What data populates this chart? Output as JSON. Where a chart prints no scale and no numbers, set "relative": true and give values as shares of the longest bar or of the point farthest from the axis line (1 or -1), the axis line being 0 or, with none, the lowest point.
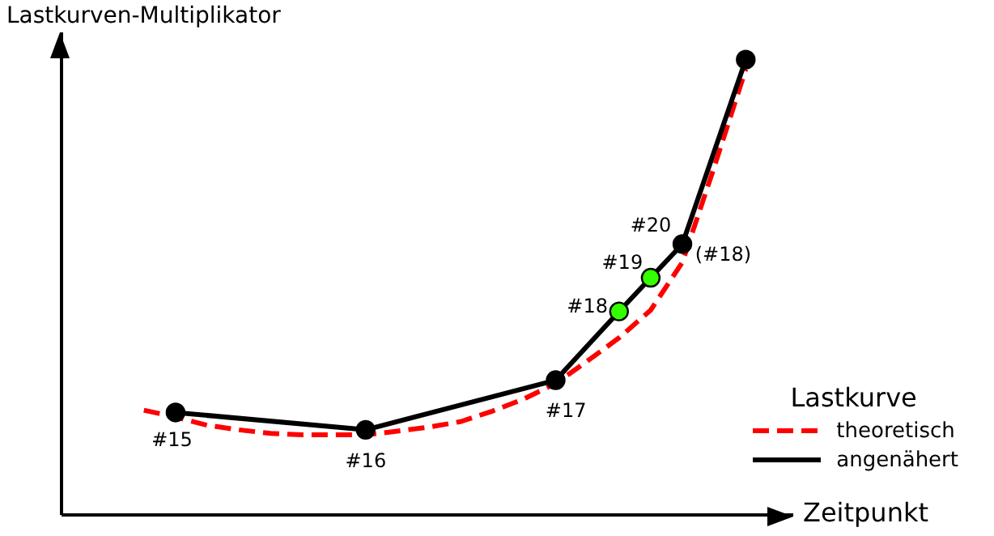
{
  "chart_data": {
    "type": "line",
    "relative": true,
    "xlabel": "Zeitpunkt",
    "ylabel": "Lastkurven-Multiplikator",
    "legend_title": "Lastkurve",
    "legend": "bottom right",
    "categories": [
      null,
      null,
      null,
      null,
      null,
      null,
      null,
      null,
      null,
      null,
      null,
      null,
      null,
      null,
      null,
      null,
      null,
      null,
      null,
      null
    ],
    "series": [
      {
        "name": "theoretisch",
        "color": "#ff0000",
        "line_style": "dashed",
        "marker": "none",
        "values": [
          0.23,
          0.215,
          0.197,
          0.187,
          0.179,
          0.176,
          0.176,
          0.176,
          0.184,
          0.193,
          0.205,
          0.228,
          0.255,
          0.289,
          0.338,
          0.389,
          0.45,
          0.555,
          0.763,
          0.979
        ]
      },
      {
        "name": "angenähert",
        "color": "#000000",
        "line_style": "solid",
        "marker": "circle",
        "colors": [
          null,
          "#000000",
          null,
          null,
          null,
          null,
          null,
          "#000000",
          null,
          null,
          null,
          null,
          null,
          "#000000",
          null,
          "#33ff00",
          "#33ff00",
          "#000000",
          null,
          "#000000"
        ],
        "values": [
          null,
          0.225,
          null,
          null,
          null,
          null,
          null,
          0.187,
          null,
          null,
          null,
          null,
          null,
          0.296,
          null,
          0.447,
          0.521,
          0.595,
          null,
          1
        ]
      }
    ],
    "annotations": [
      "#15",
      "#16",
      "#17",
      "#18",
      "#19",
      "#20",
      "(#18)"
    ]
  }
}
